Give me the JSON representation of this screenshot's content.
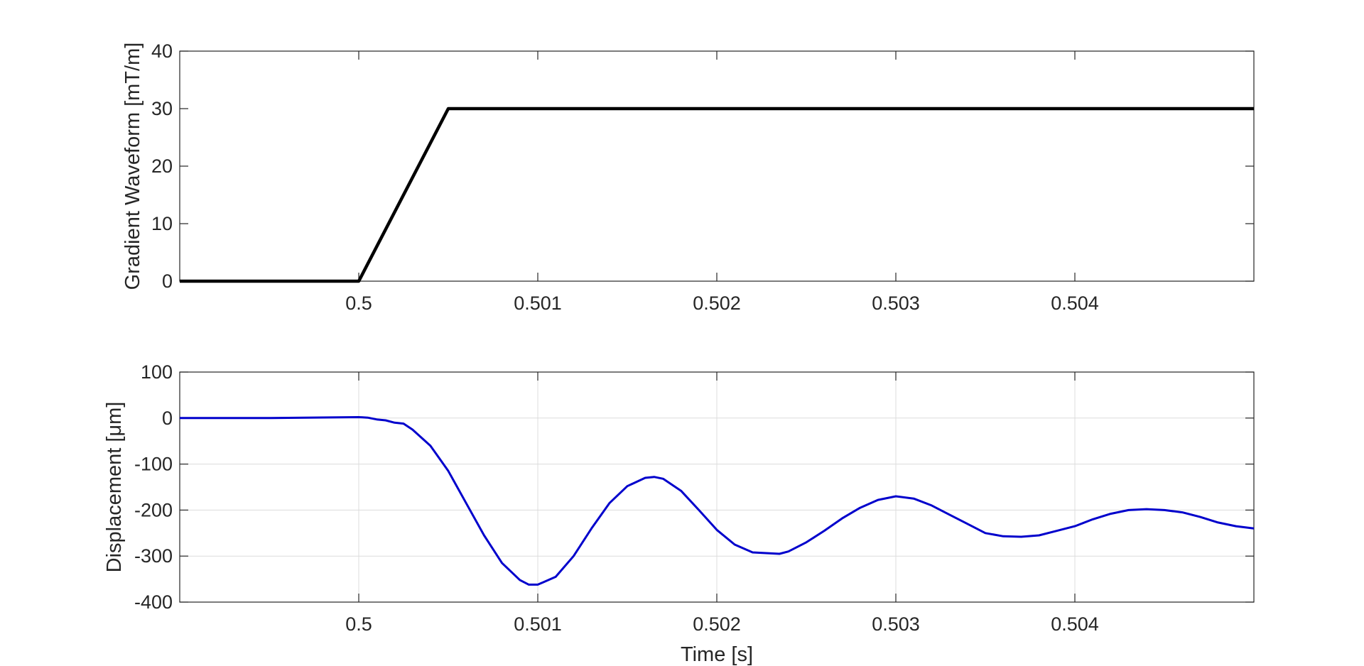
{
  "chart_data": [
    {
      "type": "line",
      "title": "",
      "xlabel": "",
      "ylabel": "Gradient Waveform [mT/m]",
      "xlim": [
        0.499,
        0.505
      ],
      "ylim": [
        0,
        40
      ],
      "xticks": [
        0.5,
        0.501,
        0.502,
        0.503,
        0.504
      ],
      "xtick_labels": [
        "0.5",
        "0.501",
        "0.502",
        "0.503",
        "0.504"
      ],
      "yticks": [
        0,
        10,
        20,
        30,
        40
      ],
      "ytick_labels": [
        "0",
        "10",
        "20",
        "30",
        "40"
      ],
      "grid": false,
      "series": [
        {
          "color": "#000000",
          "x": [
            0.499,
            0.5,
            0.5005,
            0.505
          ],
          "y": [
            0,
            0,
            30,
            30
          ]
        }
      ]
    },
    {
      "type": "line",
      "title": "",
      "xlabel": "Time [s]",
      "ylabel": "Displacement [μm]",
      "xlim": [
        0.499,
        0.505
      ],
      "ylim": [
        -400,
        100
      ],
      "xticks": [
        0.5,
        0.501,
        0.502,
        0.503,
        0.504
      ],
      "xtick_labels": [
        "0.5",
        "0.501",
        "0.502",
        "0.503",
        "0.504"
      ],
      "yticks": [
        -400,
        -300,
        -200,
        -100,
        0,
        100
      ],
      "ytick_labels": [
        "-400",
        "-300",
        "-200",
        "-100",
        "0",
        "100"
      ],
      "grid": true,
      "series": [
        {
          "color": "#0000cc",
          "x": [
            0.499,
            0.4995,
            0.5,
            0.50005,
            0.5001,
            0.50015,
            0.5002,
            0.50025,
            0.5003,
            0.5004,
            0.5005,
            0.5006,
            0.5007,
            0.5008,
            0.5009,
            0.50095,
            0.501,
            0.5011,
            0.5012,
            0.5013,
            0.5014,
            0.5015,
            0.5016,
            0.50165,
            0.5017,
            0.5018,
            0.5019,
            0.502,
            0.5021,
            0.5022,
            0.50235,
            0.5024,
            0.5025,
            0.5026,
            0.5027,
            0.5028,
            0.5029,
            0.503,
            0.5031,
            0.5032,
            0.5033,
            0.5034,
            0.5035,
            0.5036,
            0.5037,
            0.5038,
            0.5039,
            0.504,
            0.5041,
            0.5042,
            0.5043,
            0.5044,
            0.5045,
            0.5046,
            0.5047,
            0.5048,
            0.5049,
            0.505
          ],
          "y": [
            0,
            0,
            2,
            1,
            -3,
            -5,
            -10,
            -12,
            -25,
            -60,
            -115,
            -185,
            -255,
            -315,
            -352,
            -362,
            -362,
            -345,
            -300,
            -240,
            -185,
            -148,
            -130,
            -128,
            -132,
            -158,
            -200,
            -243,
            -275,
            -292,
            -295,
            -290,
            -270,
            -245,
            -218,
            -195,
            -178,
            -170,
            -175,
            -190,
            -210,
            -230,
            -250,
            -257,
            -258,
            -255,
            -245,
            -235,
            -220,
            -208,
            -200,
            -198,
            -200,
            -205,
            -215,
            -227,
            -235,
            -240
          ]
        }
      ]
    }
  ]
}
